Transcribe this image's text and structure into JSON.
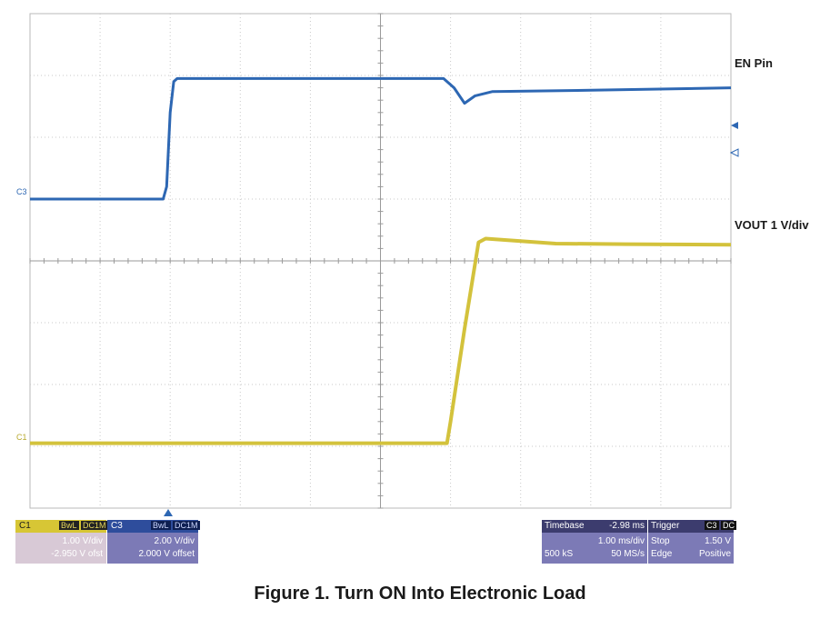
{
  "chart_data": {
    "type": "line",
    "title": "",
    "xlabel": "",
    "ylabel": "",
    "grid": true,
    "divisions": {
      "x": 10,
      "y": 8
    },
    "xlim_div": [
      0,
      10
    ],
    "ylim_div": [
      -4,
      4
    ],
    "series": [
      {
        "name": "EN Pin",
        "channel": "C3",
        "color": "#2d67b3",
        "y_div": [
          [
            0.0,
            1.0
          ],
          [
            1.9,
            1.0
          ],
          [
            1.95,
            1.2
          ],
          [
            2.0,
            2.4
          ],
          [
            2.05,
            2.9
          ],
          [
            2.1,
            2.95
          ],
          [
            3.0,
            2.95
          ],
          [
            5.9,
            2.95
          ],
          [
            6.05,
            2.8
          ],
          [
            6.2,
            2.55
          ],
          [
            6.35,
            2.67
          ],
          [
            6.6,
            2.74
          ],
          [
            8.0,
            2.76
          ],
          [
            10.0,
            2.8
          ]
        ]
      },
      {
        "name": "VOUT 1 V/div",
        "channel": "C1",
        "color": "#d3c23c",
        "y_div": [
          [
            0.0,
            -2.95
          ],
          [
            5.95,
            -2.95
          ],
          [
            6.0,
            -2.6
          ],
          [
            6.2,
            -1.1
          ],
          [
            6.4,
            0.3
          ],
          [
            6.5,
            0.36
          ],
          [
            7.5,
            0.28
          ],
          [
            8.5,
            0.27
          ],
          [
            10.0,
            0.26
          ]
        ]
      }
    ],
    "trace_labels": [
      "EN Pin",
      "VOUT 1 V/div"
    ],
    "channel_markers": [
      "C3",
      "C1"
    ]
  },
  "panels": {
    "c1": {
      "name": "C1",
      "badge1": "BwL",
      "badge2": "DC1M",
      "vdiv": "1.00 V/div",
      "offset": "-2.950 V ofst"
    },
    "c3": {
      "name": "C3",
      "badge1": "BwL",
      "badge2": "DC1M",
      "vdiv": "2.00 V/div",
      "offset": "2.000 V offset"
    },
    "timebase": {
      "label": "Timebase",
      "delay": "-2.98 ms",
      "tdiv": "1.00 ms/div",
      "samples": "500 kS",
      "rate": "50 MS/s"
    },
    "trigger": {
      "label": "Trigger",
      "badge1": "C3",
      "badge2": "DC",
      "mode": "Stop",
      "level": "1.50 V",
      "type": "Edge",
      "slope": "Positive"
    }
  },
  "caption": "Figure 1. Turn ON Into Electronic Load",
  "colors": {
    "ch1": "#d3c23c",
    "ch3": "#2d67b3",
    "panel": "#7c7ab6"
  }
}
